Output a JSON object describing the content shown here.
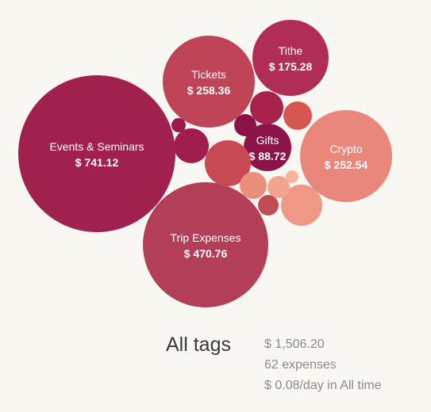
{
  "summary": {
    "title": "All tags",
    "total": "$ 1,506.20",
    "count": "62 expenses",
    "rate": "$ 0.08/day in All time"
  },
  "bubbles": [
    {
      "id": "events-seminars",
      "name": "Events & Seminars",
      "amount": "$ 741.12",
      "color": "#a1214e"
    },
    {
      "id": "trip-expenses",
      "name": "Trip Expenses",
      "amount": "$ 470.76",
      "color": "#b23e58"
    },
    {
      "id": "tickets",
      "name": "Tickets",
      "amount": "$ 258.36",
      "color": "#bf4458"
    },
    {
      "id": "crypto",
      "name": "Crypto",
      "amount": "$ 252.54",
      "color": "#e8877a"
    },
    {
      "id": "tithe",
      "name": "Tithe",
      "amount": "$ 175.28",
      "color": "#b02d56"
    },
    {
      "id": "gifts",
      "name": "Gifts",
      "amount": "$ 88.72",
      "color": "#8c1448"
    },
    {
      "id": "untitled-1",
      "name": "",
      "amount": "",
      "color": "#c74a55"
    },
    {
      "id": "untitled-2",
      "name": "",
      "amount": "",
      "color": "#ef9886"
    },
    {
      "id": "untitled-3",
      "name": "",
      "amount": "",
      "color": "#a11d4d"
    },
    {
      "id": "untitled-4",
      "name": "",
      "amount": "",
      "color": "#a8234c"
    },
    {
      "id": "untitled-5",
      "name": "",
      "amount": "",
      "color": "#d5574f"
    },
    {
      "id": "untitled-6",
      "name": "",
      "amount": "",
      "color": "#8a1246"
    },
    {
      "id": "untitled-7",
      "name": "",
      "amount": "",
      "color": "#eb8e7b"
    },
    {
      "id": "untitled-8",
      "name": "",
      "amount": "",
      "color": "#c04d56"
    },
    {
      "id": "untitled-9",
      "name": "",
      "amount": "",
      "color": "#f3a48f"
    },
    {
      "id": "untitled-10",
      "name": "",
      "amount": "",
      "color": "#9a1a4a"
    },
    {
      "id": "untitled-11",
      "name": "",
      "amount": "",
      "color": "#f6b29b"
    }
  ]
}
